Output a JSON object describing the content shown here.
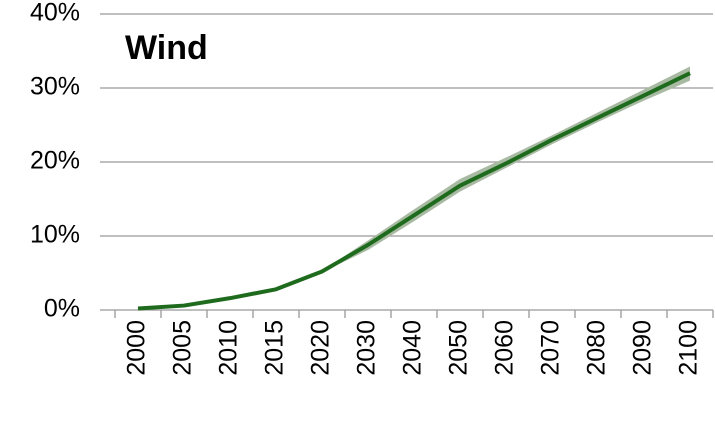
{
  "chart_data": {
    "type": "line",
    "title": "Wind",
    "categories": [
      "2000",
      "2005",
      "2010",
      "2015",
      "2020",
      "2030",
      "2040",
      "2050",
      "2060",
      "2070",
      "2080",
      "2090",
      "2100"
    ],
    "values": [
      0.2,
      0.6,
      1.6,
      2.8,
      5.2,
      8.8,
      12.8,
      16.8,
      19.8,
      23,
      26,
      29,
      32
    ],
    "color": "#1e6b1e",
    "band": {
      "lower": [
        0.2,
        0.6,
        1.6,
        2.8,
        5.1,
        8.1,
        12.0,
        16.0,
        19.2,
        22.4,
        25.4,
        28.3,
        31.0
      ],
      "upper": [
        0.2,
        0.6,
        1.6,
        2.8,
        5.3,
        9.4,
        13.6,
        17.7,
        20.6,
        23.6,
        26.7,
        29.8,
        32.9
      ],
      "color": "#a9baa3"
    },
    "ylim": [
      0,
      40
    ],
    "yticks": [
      {
        "value": 0,
        "label": "0%"
      },
      {
        "value": 10,
        "label": "10%"
      },
      {
        "value": 20,
        "label": "20%"
      },
      {
        "value": 30,
        "label": "30%"
      },
      {
        "value": 40,
        "label": "40%"
      }
    ],
    "grid": true
  }
}
